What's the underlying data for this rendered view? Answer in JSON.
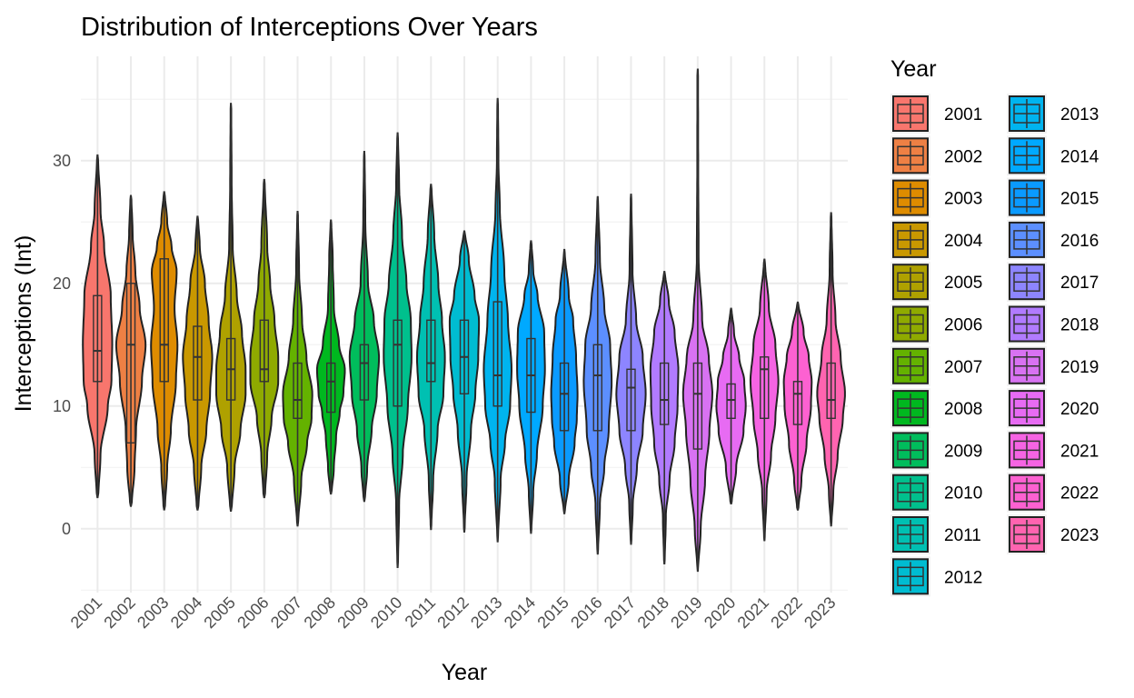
{
  "chart_data": {
    "type": "violin",
    "title": "Distribution of Interceptions Over Years",
    "xlabel": "Year",
    "ylabel": "Interceptions (Int)",
    "ylim": [
      -5.2,
      38.5
    ],
    "yticks": [
      0,
      10,
      20,
      30
    ],
    "grid": true,
    "legend": {
      "title": "Year",
      "placement": "right",
      "columns": 2
    },
    "categories": [
      "2001",
      "2002",
      "2003",
      "2004",
      "2005",
      "2006",
      "2007",
      "2008",
      "2009",
      "2010",
      "2011",
      "2012",
      "2013",
      "2014",
      "2015",
      "2016",
      "2017",
      "2018",
      "2019",
      "2020",
      "2021",
      "2022",
      "2023"
    ],
    "series": [
      {
        "name": "2001",
        "color": "#F8766D",
        "min": 2.5,
        "q1": 12,
        "median": 14.5,
        "q3": 19,
        "max": 30.5,
        "prof": [
          [
            2.5,
            0.05
          ],
          [
            6,
            0.2
          ],
          [
            10,
            0.7
          ],
          [
            12,
            0.95
          ],
          [
            15,
            1
          ],
          [
            19,
            0.9
          ],
          [
            23,
            0.45
          ],
          [
            26,
            0.2
          ],
          [
            30.5,
            0.03
          ]
        ]
      },
      {
        "name": "2002",
        "color": "#EE8044",
        "min": 1.8,
        "q1": 7,
        "median": 15,
        "q3": 20,
        "max": 27.2,
        "prof": [
          [
            1.8,
            0.05
          ],
          [
            5,
            0.25
          ],
          [
            8,
            0.35
          ],
          [
            12,
            0.75
          ],
          [
            15,
            1
          ],
          [
            18,
            0.6
          ],
          [
            21,
            0.3
          ],
          [
            24,
            0.12
          ],
          [
            27.2,
            0.03
          ]
        ]
      },
      {
        "name": "2003",
        "color": "#DE8C00",
        "min": 1.5,
        "q1": 12,
        "median": 15,
        "q3": 22,
        "max": 27.5,
        "prof": [
          [
            1.5,
            0.05
          ],
          [
            5,
            0.2
          ],
          [
            8,
            0.45
          ],
          [
            12,
            0.8
          ],
          [
            15,
            0.9
          ],
          [
            18,
            0.7
          ],
          [
            21,
            0.85
          ],
          [
            23,
            0.5
          ],
          [
            25,
            0.2
          ],
          [
            27.5,
            0.03
          ]
        ]
      },
      {
        "name": "2004",
        "color": "#C99800",
        "min": 1.5,
        "q1": 10.5,
        "median": 14,
        "q3": 16.5,
        "max": 25.5,
        "prof": [
          [
            1.5,
            0.05
          ],
          [
            5,
            0.25
          ],
          [
            8,
            0.6
          ],
          [
            11,
            0.85
          ],
          [
            14,
            1
          ],
          [
            17,
            0.75
          ],
          [
            20,
            0.5
          ],
          [
            23,
            0.15
          ],
          [
            25.5,
            0.03
          ]
        ]
      },
      {
        "name": "2005",
        "color": "#AFA100",
        "min": 1.4,
        "q1": 10.5,
        "median": 13,
        "q3": 15.5,
        "max": 34.7,
        "prof": [
          [
            1.4,
            0.05
          ],
          [
            5,
            0.25
          ],
          [
            8,
            0.65
          ],
          [
            11,
            1
          ],
          [
            13,
            1
          ],
          [
            16,
            0.75
          ],
          [
            19,
            0.4
          ],
          [
            23,
            0.12
          ],
          [
            28,
            0.05
          ],
          [
            34.7,
            0.02
          ]
        ]
      },
      {
        "name": "2006",
        "color": "#8FAA00",
        "min": 2.5,
        "q1": 12,
        "median": 13,
        "q3": 17,
        "max": 28.5,
        "prof": [
          [
            2.5,
            0.05
          ],
          [
            6,
            0.2
          ],
          [
            9,
            0.5
          ],
          [
            12,
            0.95
          ],
          [
            14,
            0.95
          ],
          [
            17,
            0.7
          ],
          [
            20,
            0.4
          ],
          [
            23,
            0.2
          ],
          [
            28.5,
            0.03
          ]
        ]
      },
      {
        "name": "2007",
        "color": "#64B200",
        "min": 0.2,
        "q1": 9,
        "median": 10.5,
        "q3": 13.5,
        "max": 25.9,
        "prof": [
          [
            0.2,
            0.03
          ],
          [
            4,
            0.25
          ],
          [
            7,
            0.65
          ],
          [
            9,
            0.95
          ],
          [
            11,
            1
          ],
          [
            14,
            0.6
          ],
          [
            17,
            0.3
          ],
          [
            21,
            0.1
          ],
          [
            25.9,
            0.02
          ]
        ]
      },
      {
        "name": "2008",
        "color": "#00B81F",
        "min": 2.8,
        "q1": 9.5,
        "median": 12,
        "q3": 13.5,
        "max": 25.2,
        "prof": [
          [
            2.8,
            0.04
          ],
          [
            5,
            0.2
          ],
          [
            7.5,
            0.35
          ],
          [
            9.5,
            0.6
          ],
          [
            11,
            0.85
          ],
          [
            13,
            0.95
          ],
          [
            15,
            0.55
          ],
          [
            18,
            0.2
          ],
          [
            22,
            0.12
          ],
          [
            25.2,
            0.02
          ]
        ]
      },
      {
        "name": "2009",
        "color": "#00BD5C",
        "min": 2.2,
        "q1": 10.5,
        "median": 13.5,
        "q3": 15,
        "max": 30.8,
        "prof": [
          [
            2.2,
            0.04
          ],
          [
            5,
            0.2
          ],
          [
            8,
            0.5
          ],
          [
            11,
            0.85
          ],
          [
            14,
            1
          ],
          [
            17,
            0.65
          ],
          [
            20,
            0.25
          ],
          [
            25,
            0.07
          ],
          [
            30.8,
            0.02
          ]
        ]
      },
      {
        "name": "2010",
        "color": "#00C08D",
        "min": -3.2,
        "q1": 10,
        "median": 15,
        "q3": 17,
        "max": 32.3,
        "prof": [
          [
            -3.2,
            0.02
          ],
          [
            2,
            0.1
          ],
          [
            6,
            0.35
          ],
          [
            10,
            0.7
          ],
          [
            14,
            0.95
          ],
          [
            17,
            0.9
          ],
          [
            20,
            0.6
          ],
          [
            24,
            0.3
          ],
          [
            28,
            0.1
          ],
          [
            32.3,
            0.02
          ]
        ]
      },
      {
        "name": "2011",
        "color": "#00C0B2",
        "min": -0.1,
        "q1": 12,
        "median": 13.5,
        "q3": 17,
        "max": 28.1,
        "prof": [
          [
            -0.1,
            0.02
          ],
          [
            4,
            0.15
          ],
          [
            8,
            0.45
          ],
          [
            11,
            0.85
          ],
          [
            14,
            0.95
          ],
          [
            17,
            0.75
          ],
          [
            20,
            0.5
          ],
          [
            24,
            0.22
          ],
          [
            28.1,
            0.03
          ]
        ]
      },
      {
        "name": "2012",
        "color": "#00BCD1",
        "min": -0.3,
        "q1": 11,
        "median": 14,
        "q3": 17,
        "max": 24.3,
        "prof": [
          [
            -0.3,
            0.02
          ],
          [
            4,
            0.15
          ],
          [
            8,
            0.45
          ],
          [
            11,
            0.75
          ],
          [
            14,
            0.95
          ],
          [
            17,
            1
          ],
          [
            19,
            0.7
          ],
          [
            22,
            0.3
          ],
          [
            24.3,
            0.03
          ]
        ]
      },
      {
        "name": "2013",
        "color": "#00B4EF",
        "min": -1.1,
        "q1": 10,
        "median": 12.5,
        "q3": 18.5,
        "max": 35.1,
        "prof": [
          [
            -1.1,
            0.02
          ],
          [
            4,
            0.2
          ],
          [
            7,
            0.5
          ],
          [
            10,
            0.85
          ],
          [
            13,
            0.95
          ],
          [
            17,
            0.7
          ],
          [
            21,
            0.45
          ],
          [
            26,
            0.15
          ],
          [
            30,
            0.05
          ],
          [
            35.1,
            0.02
          ]
        ]
      },
      {
        "name": "2014",
        "color": "#00A9FF",
        "min": -0.4,
        "q1": 9.5,
        "median": 12.5,
        "q3": 15.5,
        "max": 23.5,
        "prof": [
          [
            -0.4,
            0.02
          ],
          [
            3,
            0.15
          ],
          [
            6,
            0.4
          ],
          [
            10,
            0.8
          ],
          [
            13,
            0.95
          ],
          [
            16,
            0.9
          ],
          [
            19,
            0.45
          ],
          [
            21,
            0.15
          ],
          [
            23.5,
            0.03
          ]
        ]
      },
      {
        "name": "2015",
        "color": "#0A9AFF",
        "min": 1.2,
        "q1": 8,
        "median": 11,
        "q3": 13.5,
        "max": 22.8,
        "prof": [
          [
            1.2,
            0.03
          ],
          [
            4,
            0.3
          ],
          [
            7,
            0.7
          ],
          [
            9,
            0.85
          ],
          [
            11,
            0.9
          ],
          [
            14,
            0.8
          ],
          [
            17,
            0.6
          ],
          [
            19,
            0.3
          ],
          [
            22.8,
            0.02
          ]
        ]
      },
      {
        "name": "2016",
        "color": "#5C8FFF",
        "min": -2.1,
        "q1": 8,
        "median": 12.5,
        "q3": 15,
        "max": 27.1,
        "prof": [
          [
            -2.1,
            0.02
          ],
          [
            2,
            0.15
          ],
          [
            5,
            0.45
          ],
          [
            8,
            0.75
          ],
          [
            12,
            0.95
          ],
          [
            15,
            0.85
          ],
          [
            18,
            0.45
          ],
          [
            22,
            0.15
          ],
          [
            27.1,
            0.02
          ]
        ]
      },
      {
        "name": "2017",
        "color": "#8D85FF",
        "min": -1.3,
        "q1": 8,
        "median": 11.5,
        "q3": 13,
        "max": 27.3,
        "prof": [
          [
            -1.3,
            0.02
          ],
          [
            2,
            0.12
          ],
          [
            5,
            0.4
          ],
          [
            8,
            0.8
          ],
          [
            11,
            1
          ],
          [
            14,
            0.8
          ],
          [
            17,
            0.35
          ],
          [
            21,
            0.1
          ],
          [
            27.3,
            0.02
          ]
        ]
      },
      {
        "name": "2018",
        "color": "#B17BFF",
        "min": -2.9,
        "q1": 8.5,
        "median": 10.5,
        "q3": 13.5,
        "max": 21,
        "prof": [
          [
            -2.9,
            0.02
          ],
          [
            1,
            0.1
          ],
          [
            4,
            0.35
          ],
          [
            7,
            0.7
          ],
          [
            10,
            0.9
          ],
          [
            13,
            0.95
          ],
          [
            16,
            0.7
          ],
          [
            18.5,
            0.3
          ],
          [
            21,
            0.03
          ]
        ]
      },
      {
        "name": "2019",
        "color": "#D872F2",
        "min": -3.5,
        "q1": 6.5,
        "median": 11,
        "q3": 13.5,
        "max": 37.5,
        "prof": [
          [
            -3.5,
            0.02
          ],
          [
            0,
            0.2
          ],
          [
            4,
            0.5
          ],
          [
            8,
            0.8
          ],
          [
            11,
            1
          ],
          [
            14,
            0.75
          ],
          [
            17,
            0.3
          ],
          [
            22,
            0.06
          ],
          [
            30,
            0.03
          ],
          [
            37.5,
            0.02
          ]
        ]
      },
      {
        "name": "2020",
        "color": "#E76BF3",
        "min": 2,
        "q1": 9,
        "median": 10.5,
        "q3": 11.8,
        "max": 18,
        "prof": [
          [
            2,
            0.04
          ],
          [
            5,
            0.35
          ],
          [
            8,
            0.85
          ],
          [
            10,
            1
          ],
          [
            12,
            0.9
          ],
          [
            14,
            0.55
          ],
          [
            16,
            0.2
          ],
          [
            18,
            0.03
          ]
        ]
      },
      {
        "name": "2021",
        "color": "#F564E3",
        "min": -1,
        "q1": 9,
        "median": 13,
        "q3": 14,
        "max": 22,
        "prof": [
          [
            -1,
            0.02
          ],
          [
            3,
            0.15
          ],
          [
            6,
            0.45
          ],
          [
            9,
            0.75
          ],
          [
            12,
            0.95
          ],
          [
            15,
            0.75
          ],
          [
            18,
            0.3
          ],
          [
            22,
            0.03
          ]
        ]
      },
      {
        "name": "2022",
        "color": "#FD61D1",
        "min": 1.5,
        "q1": 8.5,
        "median": 11,
        "q3": 12,
        "max": 18.5,
        "prof": [
          [
            1.5,
            0.04
          ],
          [
            4,
            0.25
          ],
          [
            7,
            0.6
          ],
          [
            10,
            0.9
          ],
          [
            12,
            0.95
          ],
          [
            14,
            0.75
          ],
          [
            16,
            0.4
          ],
          [
            18.5,
            0.03
          ]
        ]
      },
      {
        "name": "2023",
        "color": "#FF64B0",
        "min": 0.2,
        "q1": 9,
        "median": 10.5,
        "q3": 13.5,
        "max": 25.8,
        "prof": [
          [
            0.2,
            0.02
          ],
          [
            3,
            0.15
          ],
          [
            6,
            0.45
          ],
          [
            9,
            0.8
          ],
          [
            11,
            0.95
          ],
          [
            14,
            0.65
          ],
          [
            17,
            0.3
          ],
          [
            21,
            0.1
          ],
          [
            25.8,
            0.02
          ]
        ]
      }
    ]
  }
}
